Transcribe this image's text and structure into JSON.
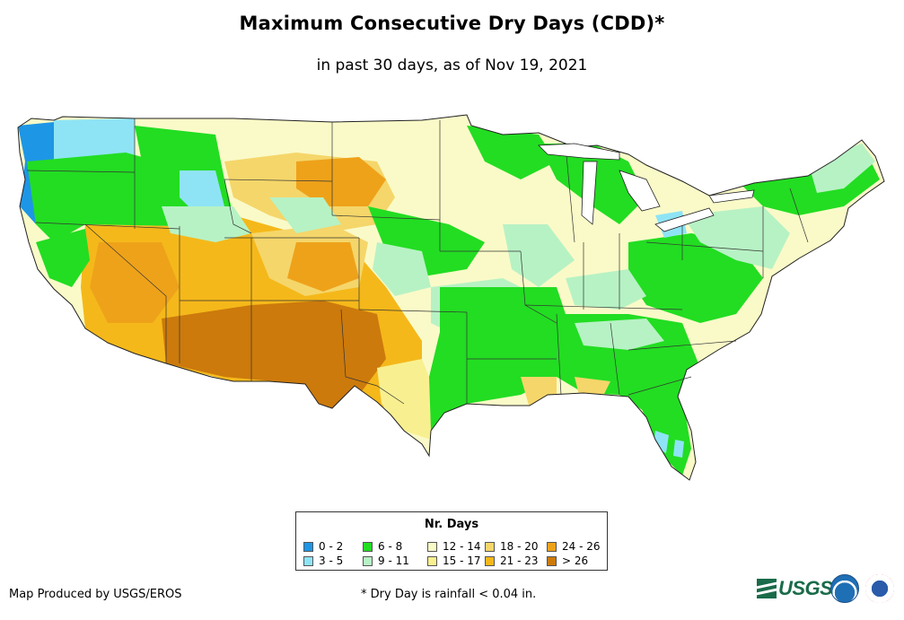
{
  "header": {
    "title": "Maximum Consecutive Dry Days (CDD)*",
    "subtitle": "in past 30 days, as of Nov 19, 2021"
  },
  "map": {
    "region": "Contiguous United States",
    "variable": "Maximum consecutive dry days in past 30 days"
  },
  "legend": {
    "title": "Nr. Days",
    "items": [
      {
        "label": "0 - 2",
        "color": "#1e96e6"
      },
      {
        "label": "3 - 5",
        "color": "#8ee4f5"
      },
      {
        "label": "6 - 8",
        "color": "#22dd22"
      },
      {
        "label": "9 - 11",
        "color": "#b7f2c4"
      },
      {
        "label": "12 - 14",
        "color": "#fafac8"
      },
      {
        "label": "15 - 17",
        "color": "#f8f090"
      },
      {
        "label": "18 - 20",
        "color": "#f5d66a"
      },
      {
        "label": "21 - 23",
        "color": "#f5b81a"
      },
      {
        "label": "24 - 26",
        "color": "#eea21a"
      },
      {
        "label": "> 26",
        "color": "#cc7a0c"
      }
    ]
  },
  "footer": {
    "credit": "Map Produced by USGS/EROS",
    "footnote": "* Dry Day is rainfall < 0.04 in.",
    "logos": [
      "USGS",
      "NOAA",
      "National Weather Service"
    ]
  }
}
